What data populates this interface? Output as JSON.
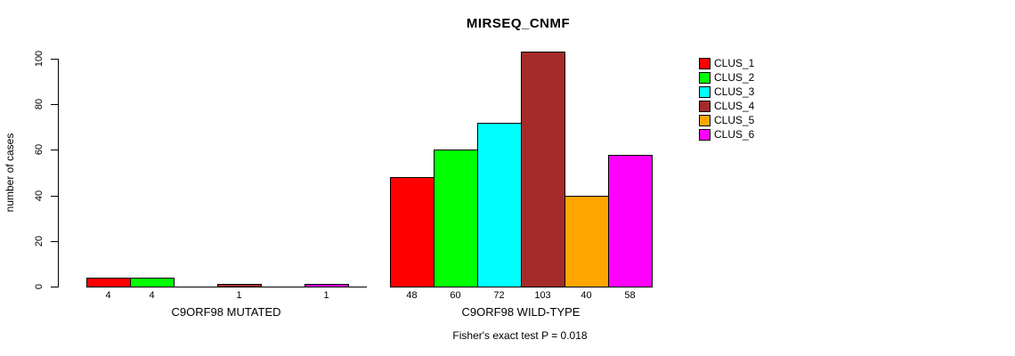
{
  "chart_data": {
    "type": "bar",
    "title": "MIRSEQ_CNMF",
    "ylabel": "number of cases",
    "ylim": [
      0,
      100
    ],
    "yticks": [
      0,
      20,
      40,
      60,
      80,
      100
    ],
    "grid": false,
    "legend_position": "right",
    "series": [
      {
        "name": "CLUS_1",
        "color": "#FF0000"
      },
      {
        "name": "CLUS_2",
        "color": "#00FF00"
      },
      {
        "name": "CLUS_3",
        "color": "#00FFFF"
      },
      {
        "name": "CLUS_4",
        "color": "#A52A2A"
      },
      {
        "name": "CLUS_5",
        "color": "#FFA500"
      },
      {
        "name": "CLUS_6",
        "color": "#FF00FF"
      }
    ],
    "groups": [
      {
        "label": "C9ORF98 MUTATED",
        "values": [
          4,
          4,
          0,
          1,
          0,
          1
        ],
        "bar_labels": [
          "4",
          "4",
          "",
          "1",
          "",
          "1"
        ]
      },
      {
        "label": "C9ORF98 WILD-TYPE",
        "values": [
          48,
          60,
          72,
          103,
          40,
          58
        ],
        "bar_labels": [
          "48",
          "60",
          "72",
          "103",
          "40",
          "58"
        ]
      }
    ],
    "annotation": "Fisher's exact test P = 0.018"
  }
}
